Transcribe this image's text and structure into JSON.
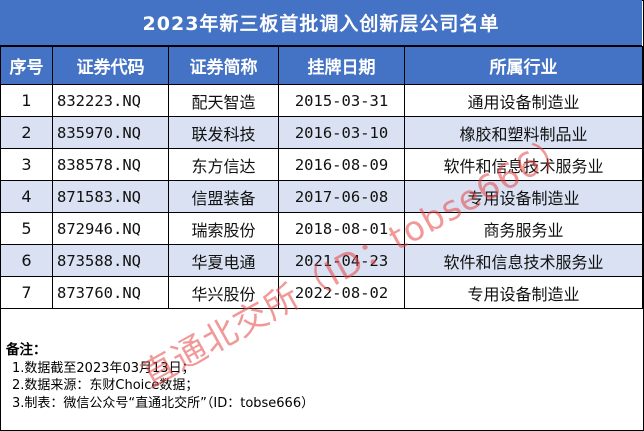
{
  "title": "2023年新三板首批调入创新层公司名单",
  "columns": [
    "序号",
    "证券代码",
    "证券简称",
    "挂牌日期",
    "所属行业"
  ],
  "rows": [
    {
      "no": "1",
      "code": "832223.NQ",
      "name": "配天智造",
      "date": "2015-03-31",
      "industry": "通用设备制造业"
    },
    {
      "no": "2",
      "code": "835970.NQ",
      "name": "联发科技",
      "date": "2016-03-10",
      "industry": "橡胶和塑料制品业"
    },
    {
      "no": "3",
      "code": "838578.NQ",
      "name": "东方信达",
      "date": "2016-08-09",
      "industry": "软件和信息技术服务业"
    },
    {
      "no": "4",
      "code": "871583.NQ",
      "name": "信盟装备",
      "date": "2017-06-08",
      "industry": "专用设备制造业"
    },
    {
      "no": "5",
      "code": "872946.NQ",
      "name": "瑞索股份",
      "date": "2018-08-01",
      "industry": "商务服务业"
    },
    {
      "no": "6",
      "code": "873588.NQ",
      "name": "华夏电通",
      "date": "2021-04-23",
      "industry": "软件和信息技术服务业"
    },
    {
      "no": "7",
      "code": "873760.NQ",
      "name": "华兴股份",
      "date": "2022-08-02",
      "industry": "专用设备制造业"
    }
  ],
  "notes": {
    "heading": "备注：",
    "items": [
      "1.数据截至2023年03月13日；",
      "2.数据来源：东财Choice数据；",
      "3.制表：微信公众号“直通北交所”（ID：tobse666）"
    ]
  },
  "watermark": "直通北交所（ID：tobse666）",
  "colors": {
    "header_bg": "#4472c4",
    "stripe_bg": "#d9e1f2",
    "watermark": "#e64646"
  }
}
